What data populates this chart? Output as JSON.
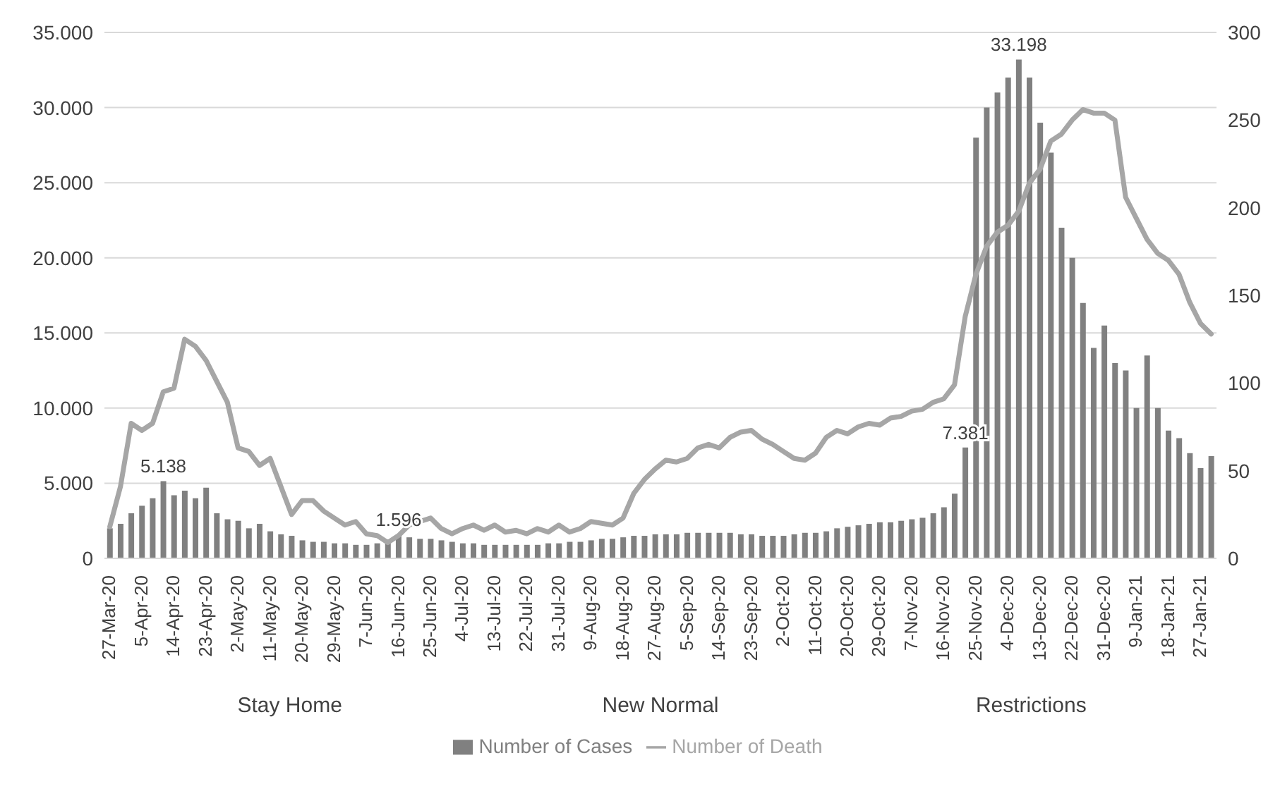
{
  "chart_data": {
    "type": "bar",
    "categories": [
      "27-Mar-20",
      null,
      null,
      "5-Apr-20",
      null,
      null,
      "14-Apr-20",
      null,
      null,
      "23-Apr-20",
      null,
      null,
      "2-May-20",
      null,
      null,
      "11-May-20",
      null,
      null,
      "20-May-20",
      null,
      null,
      "29-May-20",
      null,
      null,
      "7-Jun-20",
      null,
      null,
      "16-Jun-20",
      null,
      null,
      "25-Jun-20",
      null,
      null,
      "4-Jul-20",
      null,
      null,
      "13-Jul-20",
      null,
      null,
      "22-Jul-20",
      null,
      null,
      "31-Jul-20",
      null,
      null,
      "9-Aug-20",
      null,
      null,
      "18-Aug-20",
      null,
      null,
      "27-Aug-20",
      null,
      null,
      "5-Sep-20",
      null,
      null,
      "14-Sep-20",
      null,
      null,
      "23-Sep-20",
      null,
      null,
      "2-Oct-20",
      null,
      null,
      "11-Oct-20",
      null,
      null,
      "20-Oct-20",
      null,
      null,
      "29-Oct-20",
      null,
      null,
      "7-Nov-20",
      null,
      null,
      "16-Nov-20",
      null,
      null,
      "25-Nov-20",
      null,
      null,
      "4-Dec-20",
      null,
      null,
      "13-Dec-20",
      null,
      null,
      "22-Dec-20",
      null,
      null,
      "31-Dec-20",
      null,
      null,
      "9-Jan-21",
      null,
      null,
      "18-Jan-21",
      null,
      null,
      "27-Jan-21",
      null
    ],
    "series": [
      {
        "name": "Number of Cases",
        "color": "#808080",
        "values": [
          2000,
          2300,
          3000,
          3500,
          4000,
          5138,
          4200,
          4500,
          4000,
          4700,
          3000,
          2600,
          2500,
          2000,
          2300,
          1800,
          1600,
          1500,
          1200,
          1100,
          1100,
          1000,
          1000,
          900,
          900,
          1000,
          1100,
          1596,
          1400,
          1300,
          1300,
          1200,
          1100,
          1000,
          1000,
          900,
          900,
          900,
          900,
          900,
          900,
          1000,
          1000,
          1100,
          1100,
          1200,
          1300,
          1300,
          1400,
          1500,
          1500,
          1600,
          1600,
          1600,
          1700,
          1700,
          1700,
          1700,
          1700,
          1600,
          1600,
          1500,
          1500,
          1500,
          1600,
          1700,
          1700,
          1800,
          2000,
          2100,
          2200,
          2300,
          2400,
          2400,
          2500,
          2600,
          2700,
          3000,
          3400,
          4300,
          7381,
          28000,
          30000,
          31000,
          32000,
          33198,
          32000,
          29000,
          27000,
          22000,
          20000,
          17000,
          14000,
          15500,
          13000,
          12500,
          10000,
          13500,
          10000,
          8500,
          8000,
          7000,
          6000,
          6800
        ],
        "value_labels": [
          null,
          null,
          null,
          null,
          null,
          "5.138",
          null,
          null,
          null,
          null,
          null,
          null,
          null,
          null,
          null,
          null,
          null,
          null,
          null,
          null,
          null,
          null,
          null,
          null,
          null,
          null,
          null,
          "1.596",
          null,
          null,
          null,
          null,
          null,
          null,
          null,
          null,
          null,
          null,
          null,
          null,
          null,
          null,
          null,
          null,
          null,
          null,
          null,
          null,
          null,
          null,
          null,
          null,
          null,
          null,
          null,
          null,
          null,
          null,
          null,
          null,
          null,
          null,
          null,
          null,
          null,
          null,
          null,
          null,
          null,
          null,
          null,
          null,
          null,
          null,
          null,
          null,
          null,
          null,
          null,
          null,
          "7.381",
          null,
          null,
          null,
          null,
          "33.198",
          null,
          null,
          null,
          null,
          null,
          null,
          null,
          null,
          null,
          null,
          null,
          null,
          null,
          null,
          null,
          null,
          null,
          null
        ]
      },
      {
        "name": "Number of Death",
        "type": "line",
        "axis": "y2",
        "color": "#a6a6a6",
        "values": [
          18,
          41,
          77,
          73,
          77,
          95,
          97,
          125,
          121,
          113,
          101,
          89,
          63,
          61,
          53,
          57,
          41,
          25,
          33,
          33,
          27,
          23,
          19,
          21,
          14,
          13,
          9,
          13,
          19,
          21,
          23,
          17,
          14,
          17,
          19,
          16,
          19,
          15,
          16,
          14,
          17,
          15,
          19,
          15,
          17,
          21,
          20,
          19,
          23,
          37,
          45,
          51,
          56,
          55,
          57,
          63,
          65,
          63,
          69,
          72,
          73,
          68,
          65,
          61,
          57,
          56,
          60,
          69,
          73,
          71,
          75,
          77,
          76,
          80,
          81,
          84,
          85,
          89,
          91,
          99,
          138,
          162,
          178,
          186,
          190,
          198,
          214,
          222,
          238,
          242,
          250,
          256,
          254,
          254,
          250,
          206,
          194,
          182,
          174,
          170,
          162,
          146,
          134,
          128
        ]
      }
    ],
    "ylim": [
      0,
      35000
    ],
    "yticks": [
      0,
      {
        "value": 5000,
        "label": "5.000"
      },
      {
        "value": 10000,
        "label": "10.000"
      },
      {
        "value": 15000,
        "label": "15.000"
      },
      {
        "value": 20000,
        "label": "20.000"
      },
      {
        "value": 25000,
        "label": "25.000"
      },
      {
        "value": 30000,
        "label": "30.000"
      },
      {
        "value": 35000,
        "label": "35.000"
      }
    ],
    "y2lim": [
      0,
      300
    ],
    "y2ticks": [
      0,
      50,
      100,
      150,
      200,
      250,
      300
    ],
    "annotations": [
      "Stay Home",
      "New Normal",
      "Restrictions"
    ],
    "grid": "y",
    "legend": "bottom",
    "marker": "none",
    "line_style": "solid"
  }
}
